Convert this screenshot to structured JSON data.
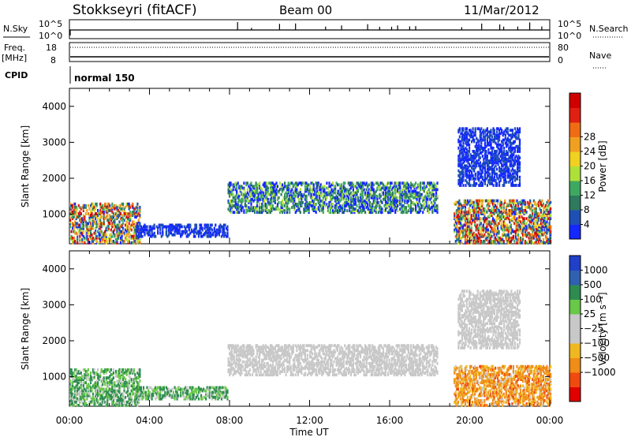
{
  "header": {
    "title": "Stokkseyri (fitACF)",
    "beam": "Beam 00",
    "date": "11/Mar/2012"
  },
  "strip_labels": {
    "nsky": "N.Sky",
    "nsearch": "N.Search",
    "freq": "Freq.",
    "freq_unit": "[MHz]",
    "nave": "Nave",
    "cpid": "CPID",
    "cpid_value": "normal 150"
  },
  "strip_ticks": {
    "nsky_left": [
      "10^5",
      "10^0"
    ],
    "nsky_right": [
      "10^5",
      "10^0"
    ],
    "freq_left": [
      "18",
      "8"
    ],
    "nave_right": [
      "80",
      "0"
    ]
  },
  "chart_data": [
    {
      "type": "heatmap",
      "title": "",
      "ylabel": "Slant Range [km]",
      "xlabel": "",
      "ylim": [
        180,
        4500
      ],
      "yticks": [
        "1000",
        "2000",
        "3000",
        "4000"
      ],
      "colorbar_label": "Power [dB]",
      "colorbar_ticks": [
        "4",
        "8",
        "12",
        "16",
        "20",
        "24",
        "28"
      ],
      "colorbar_colors": [
        "#1428ff",
        "#1e50b4",
        "#2e7a5e",
        "#3fa860",
        "#aee03a",
        "#f0d020",
        "#f0a020",
        "#f06c14",
        "#e02010",
        "#d00000"
      ],
      "regions": [
        {
          "t0": 0.0,
          "t1": 3.5,
          "r0": 200,
          "r1": 1300,
          "level": "mixed-high"
        },
        {
          "t0": 3.3,
          "t1": 7.9,
          "r0": 380,
          "r1": 700,
          "level": "low"
        },
        {
          "t0": 7.9,
          "t1": 18.4,
          "r0": 1050,
          "r1": 1900,
          "level": "mid"
        },
        {
          "t0": 19.2,
          "t1": 24.0,
          "r0": 200,
          "r1": 1400,
          "level": "mixed-high"
        },
        {
          "t0": 19.4,
          "t1": 22.5,
          "r0": 1800,
          "r1": 3400,
          "level": "low"
        }
      ]
    },
    {
      "type": "heatmap",
      "title": "",
      "ylabel": "Slant Range [km]",
      "xlabel": "Time UT",
      "ylim": [
        180,
        4500
      ],
      "yticks": [
        "1000",
        "2000",
        "3000",
        "4000"
      ],
      "xticks": [
        "00:00",
        "04:00",
        "08:00",
        "12:00",
        "16:00",
        "20:00",
        "00:00"
      ],
      "colorbar_label": "Velocity [m s⁻¹]",
      "colorbar_ticks": [
        "1000",
        "500",
        "100",
        "25",
        "−25",
        "−100",
        "−500",
        "−1000"
      ],
      "colorbar_colors": [
        "#2040c8",
        "#3060b0",
        "#2e8c50",
        "#68c848",
        "#c8c8c8",
        "#c8c8c8",
        "#f0b820",
        "#f08c18",
        "#f04a10",
        "#e00000"
      ],
      "regions": [
        {
          "t0": 0.0,
          "t1": 3.5,
          "r0": 200,
          "r1": 1200,
          "level": "positive"
        },
        {
          "t0": 3.3,
          "t1": 7.9,
          "r0": 380,
          "r1": 700,
          "level": "positive"
        },
        {
          "t0": 7.9,
          "t1": 18.4,
          "r0": 1050,
          "r1": 1900,
          "level": "near-zero"
        },
        {
          "t0": 19.2,
          "t1": 24.0,
          "r0": 200,
          "r1": 1300,
          "level": "negative"
        },
        {
          "t0": 19.4,
          "t1": 22.5,
          "r0": 1800,
          "r1": 3400,
          "level": "near-zero"
        }
      ]
    }
  ]
}
